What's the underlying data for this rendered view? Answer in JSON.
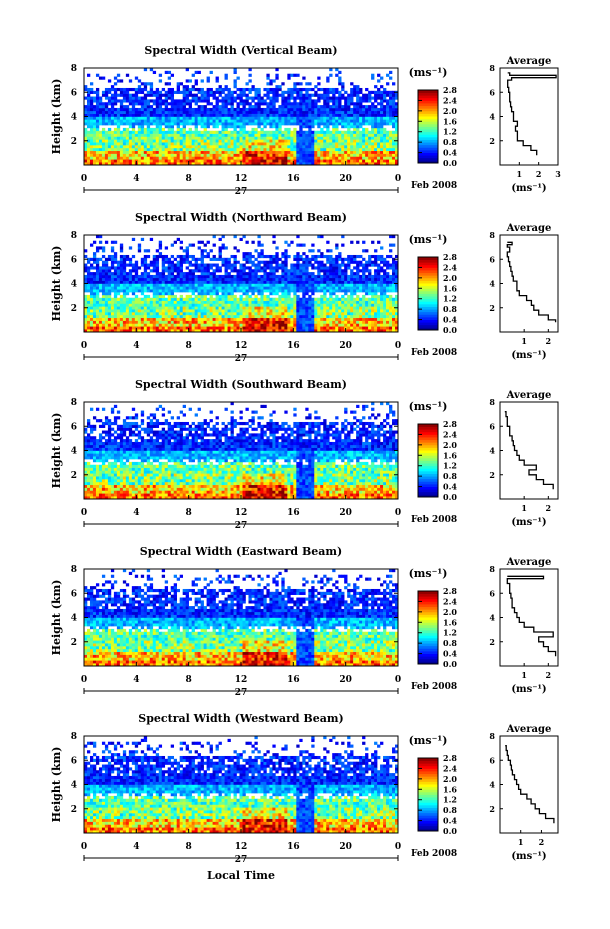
{
  "figure": {
    "xlabel": "Local Time",
    "date_label": "Feb 2008",
    "day_label": "27"
  },
  "chart_data": [
    {
      "type": "heatmap",
      "title": "Spectral Width (Vertical Beam)",
      "ylabel": "Height (km)",
      "xlabel": "",
      "xlim": [
        0,
        24
      ],
      "ylim": [
        0,
        8
      ],
      "xticks": [
        "0",
        "4",
        "8",
        "12",
        "16",
        "20",
        "0"
      ],
      "yticks": [
        "2",
        "4",
        "6",
        "8"
      ],
      "colorbar": {
        "label": "(ms⁻¹)",
        "ticks": [
          "0.0",
          "0.4",
          "0.8",
          "1.2",
          "1.6",
          "2.0",
          "2.4",
          "2.8"
        ],
        "range": [
          0,
          2.8
        ]
      },
      "average": {
        "title": "Average",
        "xlabel": "(ms⁻¹)",
        "xlim": [
          0,
          3
        ],
        "xticks": [
          "1",
          "2",
          "3"
        ],
        "ylim": [
          0,
          8
        ],
        "yticks": [
          "2",
          "4",
          "6",
          "8"
        ],
        "profile": [
          [
            1.9,
            0.8
          ],
          [
            1.6,
            1.2
          ],
          [
            1.2,
            1.6
          ],
          [
            0.9,
            2.0
          ],
          [
            0.9,
            2.4
          ],
          [
            0.8,
            2.8
          ],
          [
            0.9,
            3.2
          ],
          [
            0.7,
            3.6
          ],
          [
            0.7,
            4.0
          ],
          [
            0.6,
            4.4
          ],
          [
            0.55,
            4.8
          ],
          [
            0.5,
            5.2
          ],
          [
            0.5,
            5.6
          ],
          [
            0.45,
            6.0
          ],
          [
            0.4,
            6.4
          ],
          [
            0.4,
            6.8
          ],
          [
            0.6,
            7.0
          ],
          [
            2.9,
            7.2
          ],
          [
            0.5,
            7.4
          ],
          [
            0.4,
            7.6
          ]
        ]
      }
    },
    {
      "type": "heatmap",
      "title": "Spectral Width (Northward Beam)",
      "ylabel": "Height (km)",
      "xlabel": "",
      "xlim": [
        0,
        24
      ],
      "ylim": [
        0,
        8
      ],
      "xticks": [
        "0",
        "4",
        "8",
        "12",
        "16",
        "20",
        "0"
      ],
      "yticks": [
        "2",
        "4",
        "6",
        "8"
      ],
      "colorbar": {
        "label": "(ms⁻¹)",
        "ticks": [
          "0.0",
          "0.4",
          "0.8",
          "1.2",
          "1.6",
          "2.0",
          "2.4",
          "2.8"
        ],
        "range": [
          0,
          2.8
        ]
      },
      "average": {
        "title": "Average",
        "xlabel": "(ms⁻¹)",
        "xlim": [
          0,
          2.4
        ],
        "xticks": [
          "1",
          "2"
        ],
        "ylim": [
          0,
          8
        ],
        "yticks": [
          "2",
          "4",
          "6",
          "8"
        ],
        "profile": [
          [
            2.3,
            0.8
          ],
          [
            2.0,
            1.0
          ],
          [
            1.6,
            1.4
          ],
          [
            1.4,
            1.8
          ],
          [
            1.3,
            2.2
          ],
          [
            1.1,
            2.6
          ],
          [
            0.8,
            3.0
          ],
          [
            0.7,
            3.4
          ],
          [
            0.7,
            3.8
          ],
          [
            0.55,
            4.2
          ],
          [
            0.5,
            4.6
          ],
          [
            0.45,
            5.0
          ],
          [
            0.4,
            5.4
          ],
          [
            0.35,
            5.8
          ],
          [
            0.3,
            6.2
          ],
          [
            0.4,
            6.6
          ],
          [
            0.3,
            7.0
          ],
          [
            0.5,
            7.2
          ],
          [
            0.3,
            7.4
          ]
        ]
      }
    },
    {
      "type": "heatmap",
      "title": "Spectral Width (Southward Beam)",
      "ylabel": "Height (km)",
      "xlabel": "",
      "xlim": [
        0,
        24
      ],
      "ylim": [
        0,
        8
      ],
      "xticks": [
        "0",
        "4",
        "8",
        "12",
        "16",
        "20",
        "0"
      ],
      "yticks": [
        "2",
        "4",
        "6",
        "8"
      ],
      "colorbar": {
        "label": "(ms⁻¹)",
        "ticks": [
          "0.0",
          "0.4",
          "0.8",
          "1.2",
          "1.6",
          "2.0",
          "2.4",
          "2.8"
        ],
        "range": [
          0,
          2.8
        ]
      },
      "average": {
        "title": "Average",
        "xlabel": "(ms⁻¹)",
        "xlim": [
          0,
          2.4
        ],
        "xticks": [
          "1",
          "2"
        ],
        "ylim": [
          0,
          8
        ],
        "yticks": [
          "2",
          "4",
          "6",
          "8"
        ],
        "profile": [
          [
            2.2,
            0.8
          ],
          [
            1.8,
            1.2
          ],
          [
            1.5,
            1.6
          ],
          [
            1.2,
            2.0
          ],
          [
            1.5,
            2.4
          ],
          [
            1.0,
            2.8
          ],
          [
            0.8,
            3.2
          ],
          [
            0.7,
            3.6
          ],
          [
            0.6,
            4.0
          ],
          [
            0.55,
            4.4
          ],
          [
            0.5,
            4.8
          ],
          [
            0.4,
            5.2
          ],
          [
            0.4,
            5.6
          ],
          [
            0.3,
            6.0
          ],
          [
            0.3,
            6.4
          ],
          [
            0.25,
            6.8
          ],
          [
            0.2,
            7.2
          ]
        ]
      }
    },
    {
      "type": "heatmap",
      "title": "Spectral Width (Eastward Beam)",
      "ylabel": "Height (km)",
      "xlabel": "",
      "xlim": [
        0,
        24
      ],
      "ylim": [
        0,
        8
      ],
      "xticks": [
        "0",
        "4",
        "8",
        "12",
        "16",
        "20",
        "0"
      ],
      "yticks": [
        "2",
        "4",
        "6",
        "8"
      ],
      "colorbar": {
        "label": "(ms⁻¹)",
        "ticks": [
          "0.0",
          "0.4",
          "0.8",
          "1.2",
          "1.6",
          "2.0",
          "2.4",
          "2.8"
        ],
        "range": [
          0,
          2.8
        ]
      },
      "average": {
        "title": "Average",
        "xlabel": "(ms⁻¹)",
        "xlim": [
          0,
          2.4
        ],
        "xticks": [
          "1",
          "2"
        ],
        "ylim": [
          0,
          8
        ],
        "yticks": [
          "2",
          "4",
          "6",
          "8"
        ],
        "profile": [
          [
            2.3,
            0.8
          ],
          [
            2.0,
            1.2
          ],
          [
            1.8,
            1.6
          ],
          [
            1.6,
            2.0
          ],
          [
            2.2,
            2.4
          ],
          [
            1.4,
            2.8
          ],
          [
            1.0,
            3.2
          ],
          [
            0.8,
            3.6
          ],
          [
            0.7,
            4.0
          ],
          [
            0.6,
            4.4
          ],
          [
            0.5,
            4.8
          ],
          [
            0.5,
            5.2
          ],
          [
            0.45,
            5.6
          ],
          [
            0.4,
            6.0
          ],
          [
            0.4,
            6.4
          ],
          [
            0.3,
            6.8
          ],
          [
            1.8,
            7.2
          ],
          [
            0.3,
            7.4
          ]
        ]
      }
    },
    {
      "type": "heatmap",
      "title": "Spectral Width (Westward Beam)",
      "ylabel": "Height (km)",
      "xlabel": "Local Time",
      "xlim": [
        0,
        24
      ],
      "ylim": [
        0,
        8
      ],
      "xticks": [
        "0",
        "4",
        "8",
        "12",
        "16",
        "20",
        "0"
      ],
      "yticks": [
        "2",
        "4",
        "6",
        "8"
      ],
      "colorbar": {
        "label": "(ms⁻¹)",
        "ticks": [
          "0.0",
          "0.4",
          "0.8",
          "1.2",
          "1.6",
          "2.0",
          "2.4",
          "2.8"
        ],
        "range": [
          0,
          2.8
        ]
      },
      "average": {
        "title": "Average",
        "xlabel": "(ms⁻¹)",
        "xlim": [
          0,
          2.8
        ],
        "xticks": [
          "1",
          "2"
        ],
        "ylim": [
          0,
          8
        ],
        "yticks": [
          "2",
          "4",
          "6",
          "8"
        ],
        "profile": [
          [
            2.6,
            0.8
          ],
          [
            2.2,
            1.2
          ],
          [
            1.9,
            1.6
          ],
          [
            1.7,
            2.0
          ],
          [
            1.5,
            2.4
          ],
          [
            1.3,
            2.8
          ],
          [
            1.0,
            3.2
          ],
          [
            0.9,
            3.6
          ],
          [
            0.8,
            4.0
          ],
          [
            0.7,
            4.4
          ],
          [
            0.6,
            4.8
          ],
          [
            0.55,
            5.2
          ],
          [
            0.5,
            5.6
          ],
          [
            0.4,
            6.0
          ],
          [
            0.35,
            6.4
          ],
          [
            0.3,
            6.8
          ],
          [
            0.25,
            7.2
          ]
        ]
      }
    }
  ]
}
